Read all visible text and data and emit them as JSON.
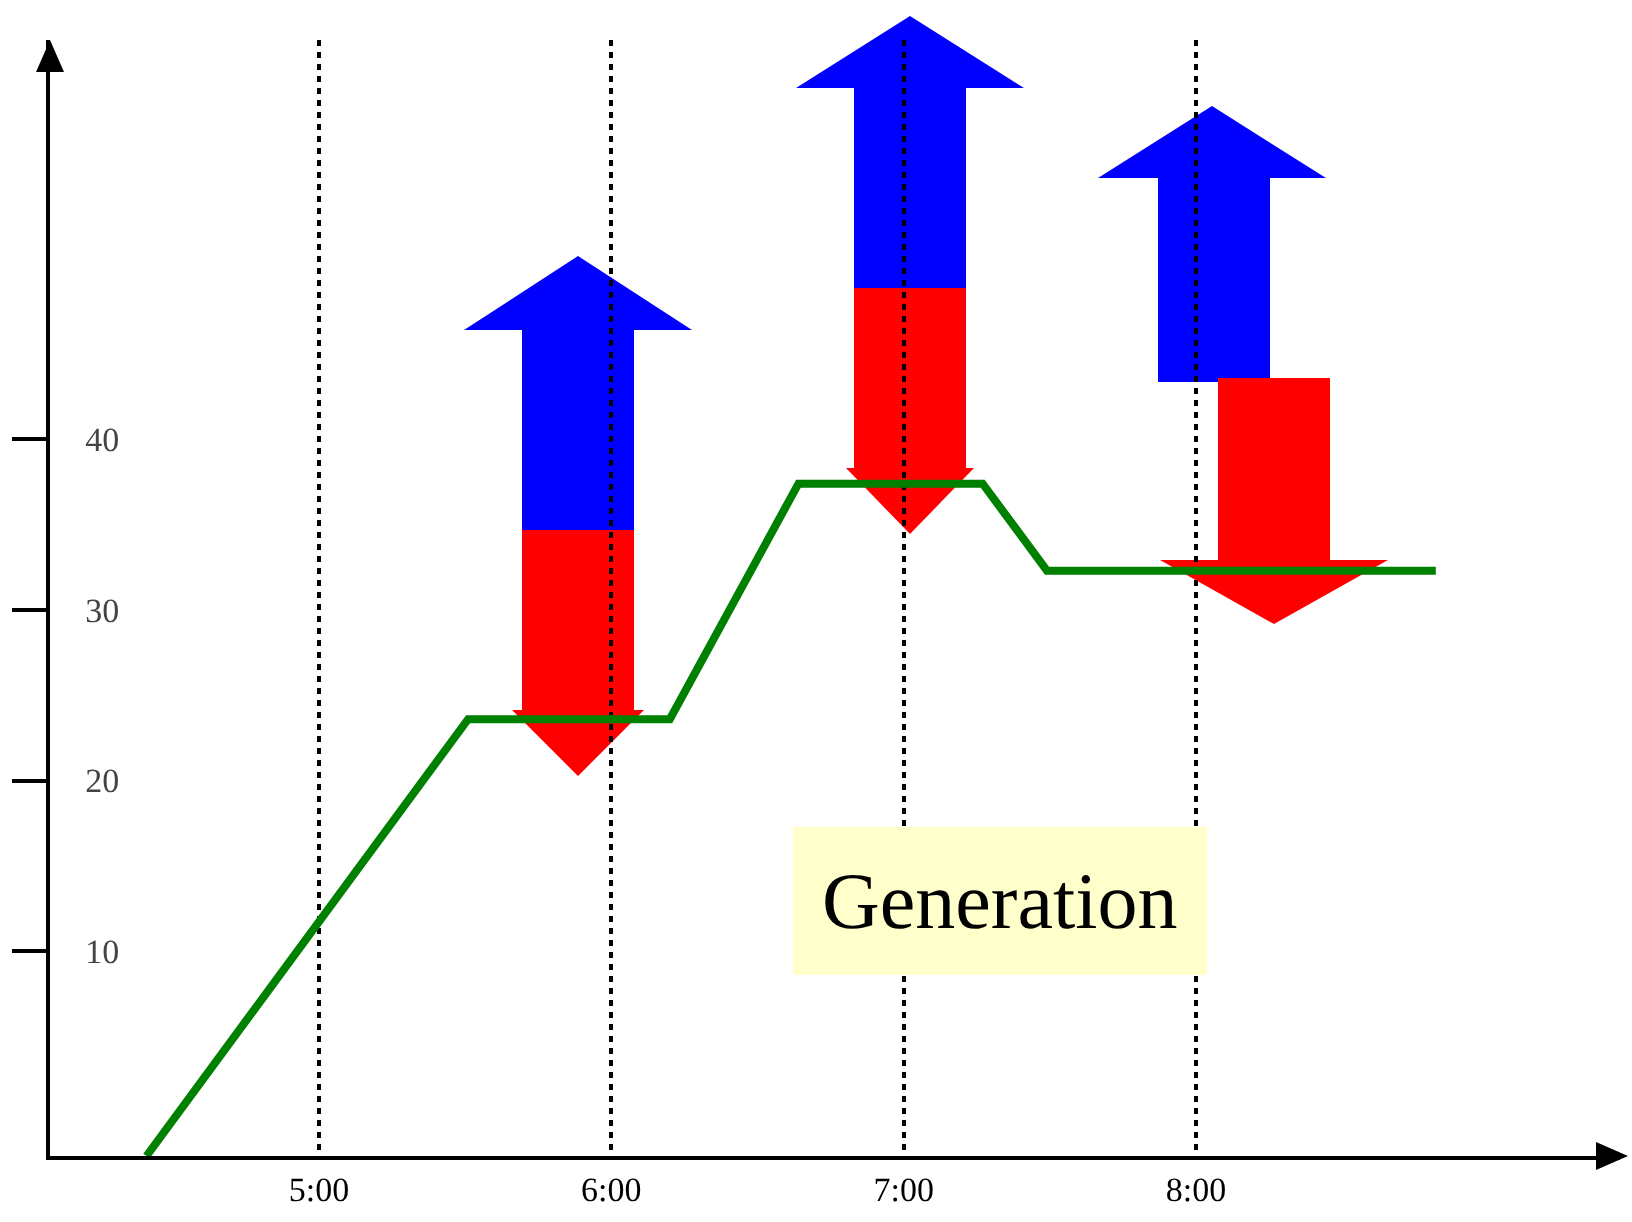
{
  "chart_data": {
    "type": "line",
    "x": [
      4.41,
      5.51,
      6.2,
      6.64,
      7.27,
      7.49,
      8.82
    ],
    "series": [
      {
        "color": "#008000",
        "values": [
          -2,
          23.6,
          23.6,
          37.4,
          37.4,
          32.3,
          32.3
        ]
      }
    ],
    "xlim": [
      4.08,
      9.45
    ],
    "xticks": [
      {
        "value": 5,
        "label": "5:00"
      },
      {
        "value": 6,
        "label": "6:00"
      },
      {
        "value": 7,
        "label": "7:00"
      },
      {
        "value": 8,
        "label": "8:00"
      }
    ],
    "ylim": [
      -2,
      63.4
    ],
    "yticks": [
      10,
      20,
      30,
      40
    ],
    "grid": "x",
    "marker": "none",
    "line_style": "solid",
    "annotations": [
      "Generation"
    ]
  }
}
